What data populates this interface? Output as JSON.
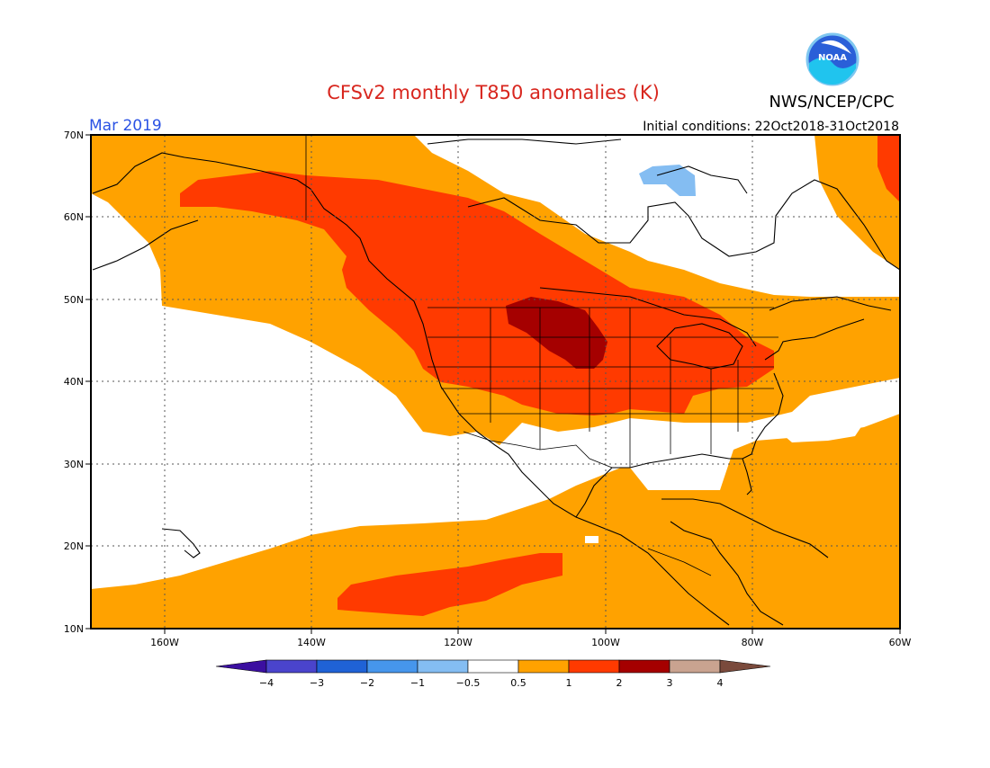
{
  "title": "CFSv2 monthly T850 anomalies (K)",
  "month": "Mar 2019",
  "initial_conditions": "Initial conditions: 22Oct2018-31Oct2018",
  "agency": "NWS/NCEP/CPC",
  "logo_text": "NOAA",
  "colors": {
    "title": "#d8261e",
    "month": "#2a52e4",
    "bins": [
      "#3b0fa0",
      "#4a44cc",
      "#1f62d6",
      "#4696ec",
      "#84bdf2",
      "#ffffff",
      "#ffa200",
      "#ff3a00",
      "#a50000",
      "#c9a390",
      "#7a4a3c"
    ]
  },
  "lat_labels": [
    "70N",
    "60N",
    "50N",
    "40N",
    "30N",
    "20N",
    "10N"
  ],
  "lon_labels": [
    "160W",
    "140W",
    "120W",
    "100W",
    "80W",
    "60W"
  ],
  "colorbar_labels": [
    "−4",
    "−3",
    "−2",
    "−1",
    "−0.5",
    "0.5",
    "1",
    "2",
    "3",
    "4"
  ],
  "chart_data": {
    "type": "heatmap",
    "variable": "T850 anomaly",
    "units": "K",
    "extent": {
      "lon": [
        -170,
        -60
      ],
      "lat": [
        10,
        70
      ]
    },
    "bin_edges": [
      -4,
      -3,
      -2,
      -1,
      -0.5,
      0.5,
      1,
      2,
      3,
      4
    ],
    "regions": [
      {
        "category": "0.5 to 1",
        "lon": [
          -165,
          -60
        ],
        "lat": [
          10,
          70
        ],
        "note": "broad orange background over Pacific and Atlantic"
      },
      {
        "category": "-0.5 to 0.5",
        "lon": [
          -170,
          -125
        ],
        "lat": [
          12,
          50
        ],
        "note": "white area over eastern Pacific"
      },
      {
        "category": "-0.5 to 0.5",
        "lon": [
          -105,
          -65
        ],
        "lat": [
          52,
          70
        ],
        "note": "white area over Hudson Bay / Canadian Arctic"
      },
      {
        "category": "-0.5 to 0.5",
        "lon": [
          -118,
          -82
        ],
        "lat": [
          24,
          34
        ],
        "note": "white area over Mexico and Gulf of Mexico"
      },
      {
        "category": "1 to 2",
        "lon": [
          -155,
          -80
        ],
        "lat": [
          38,
          63
        ],
        "note": "red band from Alaska through Great Lakes"
      },
      {
        "category": "1 to 2",
        "lon": [
          -135,
          -112
        ],
        "lat": [
          12,
          18
        ],
        "note": "red patch over tropical east Pacific"
      },
      {
        "category": "2 to 3",
        "lon": [
          -112,
          -100
        ],
        "lat": [
          42,
          50
        ],
        "note": "dark red over northern Great Plains"
      },
      {
        "category": "-1 to -0.5",
        "lon": [
          -97,
          -91
        ],
        "lat": [
          62,
          64
        ],
        "note": "small light-blue patch north of Hudson Bay"
      }
    ]
  }
}
